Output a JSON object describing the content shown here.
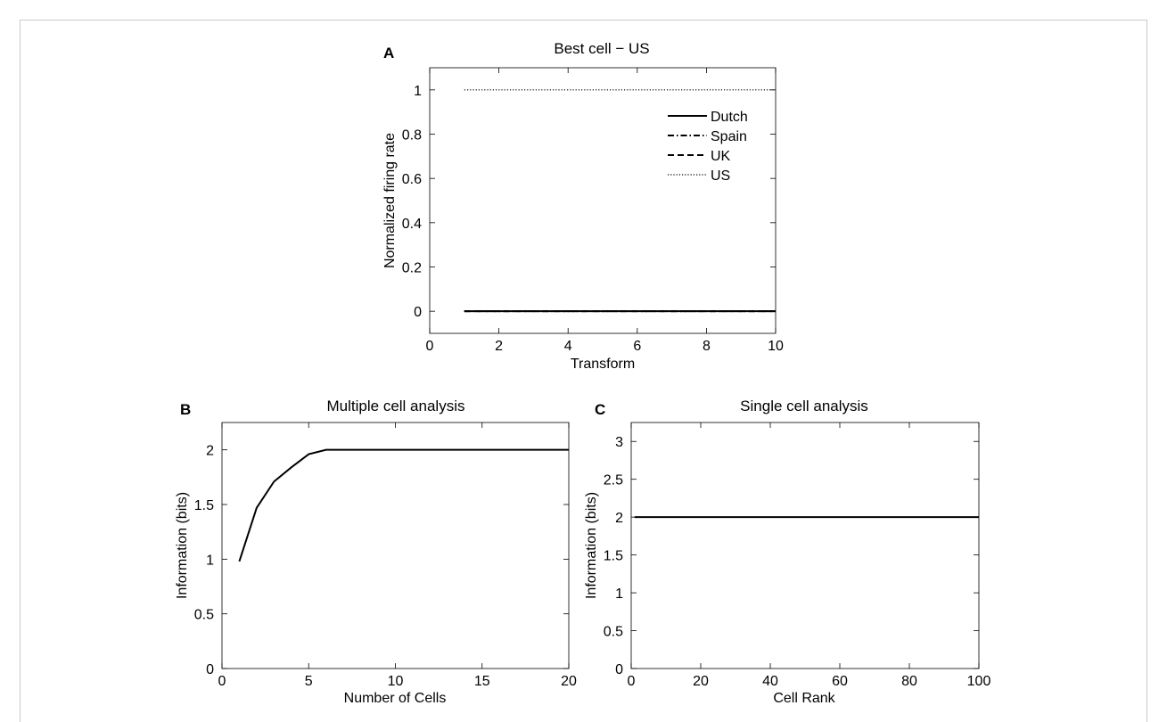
{
  "chart_data": [
    {
      "panel_label": "A",
      "type": "line",
      "title": "Best cell − US",
      "xlabel": "Transform",
      "ylabel": "Normalized firing rate",
      "xlim": [
        0,
        10
      ],
      "ylim": [
        -0.1,
        1.1
      ],
      "xticks": [
        0,
        2,
        4,
        6,
        8,
        10
      ],
      "yticks": [
        0,
        0.2,
        0.4,
        0.6,
        0.8,
        1
      ],
      "grid": false,
      "legend_position": "top-right",
      "x": [
        1,
        2,
        3,
        4,
        5,
        6,
        7,
        8,
        9,
        10
      ],
      "series": [
        {
          "name": "Dutch",
          "style": "solid",
          "values": [
            0,
            0,
            0,
            0,
            0,
            0,
            0,
            0,
            0,
            0
          ]
        },
        {
          "name": "Spain",
          "style": "dashdot",
          "values": [
            0,
            0,
            0,
            0,
            0,
            0,
            0,
            0,
            0,
            0
          ]
        },
        {
          "name": "UK",
          "style": "dashed",
          "values": [
            0,
            0,
            0,
            0,
            0,
            0,
            0,
            0,
            0,
            0
          ]
        },
        {
          "name": "US",
          "style": "dotted",
          "values": [
            1,
            1,
            1,
            1,
            1,
            1,
            1,
            1,
            1,
            1
          ]
        }
      ]
    },
    {
      "panel_label": "B",
      "type": "line",
      "title": "Multiple cell analysis",
      "xlabel": "Number of Cells",
      "ylabel": "Information (bits)",
      "xlim": [
        0,
        20
      ],
      "ylim": [
        0,
        2.25
      ],
      "xticks": [
        0,
        5,
        10,
        15,
        20
      ],
      "yticks": [
        0,
        0.5,
        1,
        1.5,
        2
      ],
      "grid": false,
      "x": [
        1,
        2,
        3,
        4,
        5,
        6,
        7,
        8,
        9,
        10,
        11,
        12,
        13,
        14,
        15,
        16,
        17,
        18,
        19,
        20
      ],
      "series": [
        {
          "style": "solid",
          "values": [
            0.98,
            1.47,
            1.71,
            1.84,
            1.96,
            2.0,
            2.0,
            2.0,
            2.0,
            2.0,
            2.0,
            2.0,
            2.0,
            2.0,
            2.0,
            2.0,
            2.0,
            2.0,
            2.0,
            2.0
          ]
        }
      ]
    },
    {
      "panel_label": "C",
      "type": "line",
      "title": "Single cell analysis",
      "xlabel": "Cell Rank",
      "ylabel": "Information (bits)",
      "xlim": [
        0,
        100
      ],
      "ylim": [
        0,
        3.25
      ],
      "xticks": [
        0,
        20,
        40,
        60,
        80,
        100
      ],
      "yticks": [
        0,
        0.5,
        1,
        1.5,
        2,
        2.5,
        3
      ],
      "grid": false,
      "x": [
        1,
        100
      ],
      "series": [
        {
          "style": "solid",
          "values": [
            2.0,
            2.0
          ]
        }
      ]
    }
  ]
}
